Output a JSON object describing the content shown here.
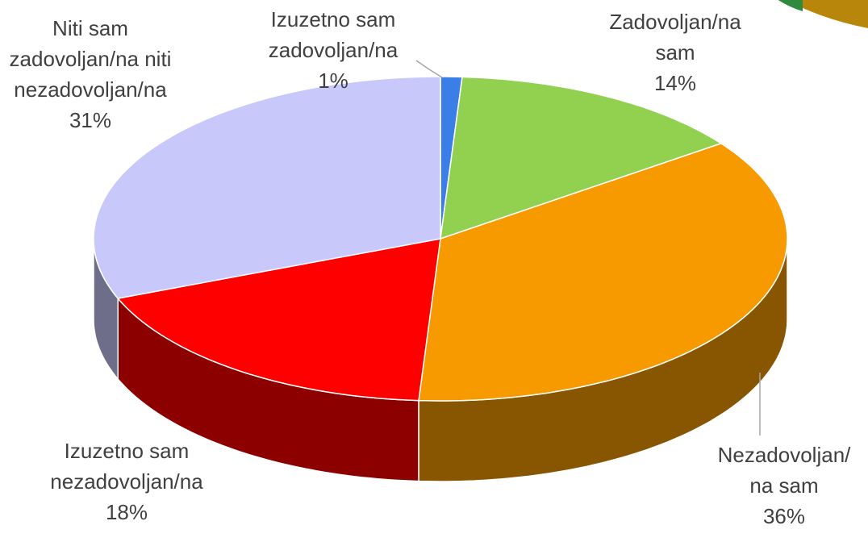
{
  "chart_data": {
    "type": "pie",
    "categories": [
      "Izuzetno sam zadovoljan/na",
      "Zadovoljan/na sam",
      "Nezadovoljan/na sam",
      "Izuzetno sam nezadovoljan/na",
      "Niti sam zadovoljan/na niti nezadovoljan/na"
    ],
    "values": [
      1,
      14,
      36,
      18,
      31
    ],
    "value_labels": [
      "1%",
      "14%",
      "36%",
      "18%",
      "31%"
    ],
    "colors": [
      "#3c7ee8",
      "#92d050",
      "#f79a00",
      "#ff0000",
      "#c8c8fa"
    ]
  }
}
